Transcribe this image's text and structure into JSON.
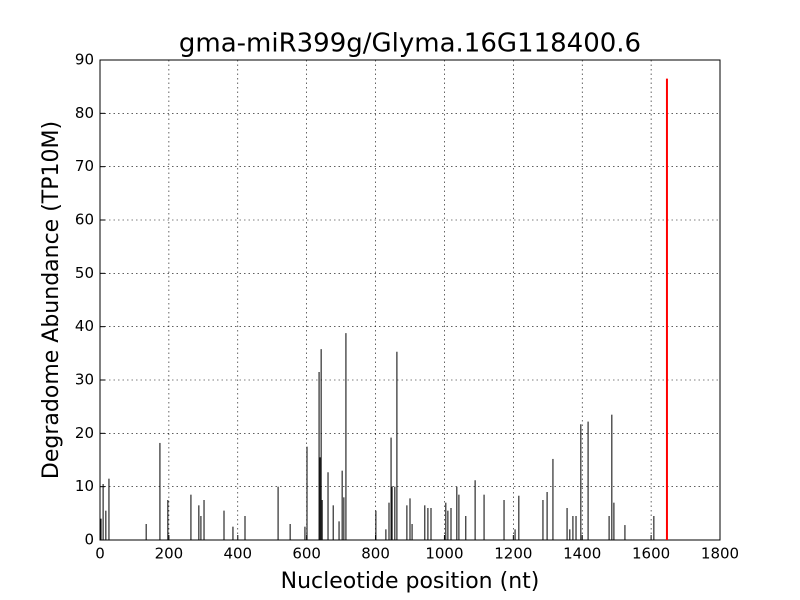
{
  "chart_data": {
    "type": "vlines",
    "title": "gma-miR399g/Glyma.16G118400.6",
    "x_label": "Nucleotide position (nt)",
    "y_label": "Degradome Abundance (TP10M)",
    "xlim": [
      0,
      1800
    ],
    "ylim": [
      0,
      90
    ],
    "xticks": [
      0,
      200,
      400,
      600,
      800,
      1000,
      1200,
      1400,
      1600,
      1800
    ],
    "yticks": [
      0,
      10,
      20,
      30,
      40,
      50,
      60,
      70,
      80,
      90
    ],
    "grid": true,
    "series": [
      {
        "color": "#000000",
        "x": [
          3,
          9,
          17,
          26,
          134,
          174,
          197,
          264,
          287,
          293,
          302,
          360,
          386,
          421,
          517,
          552,
          595,
          601,
          636,
          639,
          642,
          645,
          662,
          677,
          694,
          703,
          708,
          714,
          801,
          830,
          839,
          845,
          848,
          856,
          862,
          891,
          900,
          906,
          943,
          952,
          961,
          1004,
          1010,
          1019,
          1036,
          1042,
          1062,
          1089,
          1115,
          1173,
          1205,
          1216,
          1286,
          1298,
          1315,
          1356,
          1364,
          1373,
          1382,
          1396,
          1417,
          1478,
          1486,
          1492,
          1524,
          1608
        ],
        "values": [
          4,
          10.5,
          5.5,
          11.5,
          3,
          18.2,
          7.5,
          8.5,
          6.5,
          4.5,
          7.5,
          5.5,
          2.5,
          4.5,
          10,
          3,
          2.5,
          17.5,
          31.5,
          15.5,
          35.8,
          7.5,
          12.7,
          6.5,
          3.5,
          13,
          8,
          38.8,
          5.5,
          2,
          7,
          19.2,
          10,
          10,
          35.3,
          6.5,
          7.8,
          3,
          6.5,
          6,
          6,
          7,
          5.5,
          6,
          10,
          8.5,
          4.5,
          11.2,
          8.5,
          7.5,
          2,
          8.3,
          7.5,
          9,
          15.2,
          6,
          2,
          4.5,
          4.5,
          21.7,
          22.2,
          4.5,
          23.5,
          7,
          2.8,
          4.5
        ]
      },
      {
        "color": "#ff0000",
        "x": [
          1646
        ],
        "values": [
          86.5
        ]
      }
    ]
  }
}
